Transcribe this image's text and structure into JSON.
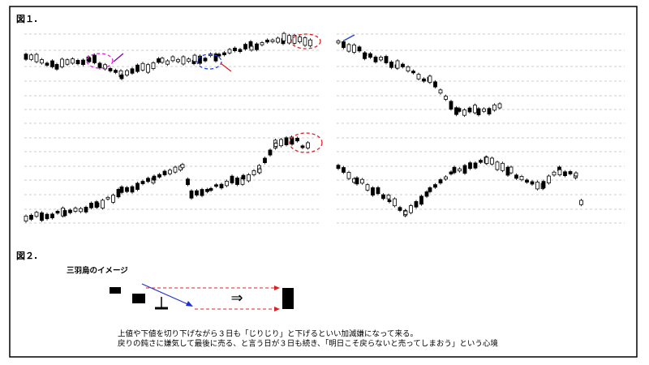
{
  "figure1": {
    "label": "図１."
  },
  "figure2": {
    "label": "図２.",
    "subtitle": "三羽烏のイメージ",
    "arrow": "⇒",
    "caption": [
      "上値や下値を切り下げながら３日も「じりじり」と下げるといい加減嫌になって来る。",
      "戻りの鈍さに嫌気して最後に売る、と言う日が３日も続き、「明日こそ戻らないと売ってしまおう」という心境"
    ]
  }
}
